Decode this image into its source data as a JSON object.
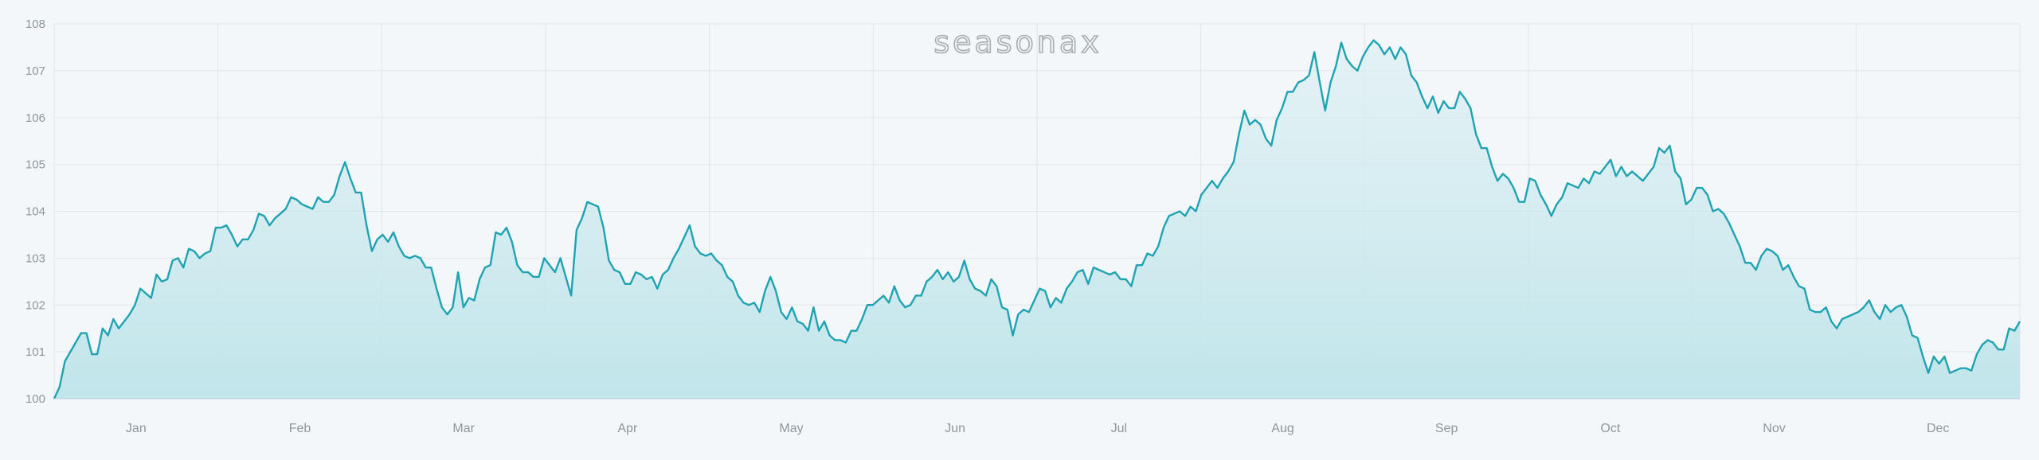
{
  "brand": {
    "watermark": "seasonax"
  },
  "colors": {
    "line": "#1fa3b3",
    "fill_top": "#d4ecf0",
    "fill_bottom": "#c0e5ea",
    "grid": "#dfe6ea",
    "axis": "#c4ced4",
    "background": "#f3f7fa"
  },
  "chart_data": {
    "type": "area",
    "y_ticks": [
      "100",
      "101",
      "102",
      "103",
      "104",
      "105",
      "106",
      "107",
      "108"
    ],
    "ylim": [
      100,
      108
    ],
    "x_ticks": [
      "Jan",
      "Feb",
      "Mar",
      "Apr",
      "May",
      "Jun",
      "Jul",
      "Aug",
      "Sep",
      "Oct",
      "Nov",
      "Dec"
    ],
    "grid": true,
    "series": [
      {
        "values": [
          100.0,
          100.25,
          100.8,
          101.0,
          101.2,
          101.4,
          101.4,
          100.95,
          100.95,
          101.5,
          101.35,
          101.7,
          101.5,
          101.65,
          101.8,
          102.0,
          102.35,
          102.25,
          102.15,
          102.65,
          102.5,
          102.55,
          102.95,
          103.0,
          102.8,
          103.2,
          103.15,
          103.0,
          103.1,
          103.15,
          103.65,
          103.65,
          103.7,
          103.5,
          103.25,
          103.4,
          103.4,
          103.6,
          103.95,
          103.9,
          103.7,
          103.85,
          103.95,
          104.05,
          104.3,
          104.25,
          104.15,
          104.1,
          104.05,
          104.3,
          104.2,
          104.2,
          104.35,
          104.75,
          105.05,
          104.7,
          104.4,
          104.4,
          103.7,
          103.15,
          103.4,
          103.5,
          103.35,
          103.55,
          103.25,
          103.05,
          103.0,
          103.05,
          103.0,
          102.8,
          102.8,
          102.35,
          101.95,
          101.8,
          101.95,
          102.7,
          101.95,
          102.15,
          102.1,
          102.55,
          102.8,
          102.85,
          103.55,
          103.5,
          103.65,
          103.35,
          102.85,
          102.7,
          102.7,
          102.6,
          102.6,
          103.0,
          102.85,
          102.7,
          103.0,
          102.6,
          102.2,
          103.6,
          103.85,
          104.2,
          104.15,
          104.1,
          103.65,
          102.95,
          102.75,
          102.7,
          102.45,
          102.45,
          102.7,
          102.65,
          102.55,
          102.6,
          102.35,
          102.65,
          102.75,
          103.0,
          103.2,
          103.45,
          103.7,
          103.25,
          103.1,
          103.05,
          103.1,
          102.95,
          102.85,
          102.6,
          102.5,
          102.2,
          102.05,
          102.0,
          102.05,
          101.85,
          102.3,
          102.6,
          102.3,
          101.85,
          101.7,
          101.95,
          101.65,
          101.6,
          101.45,
          101.95,
          101.45,
          101.65,
          101.35,
          101.25,
          101.25,
          101.2,
          101.45,
          101.45,
          101.7,
          102.0,
          102.0,
          102.1,
          102.2,
          102.05,
          102.4,
          102.1,
          101.95,
          102.0,
          102.2,
          102.2,
          102.5,
          102.6,
          102.75,
          102.55,
          102.7,
          102.5,
          102.6,
          102.95,
          102.55,
          102.35,
          102.3,
          102.2,
          102.55,
          102.4,
          101.95,
          101.9,
          101.35,
          101.8,
          101.9,
          101.85,
          102.1,
          102.35,
          102.3,
          101.95,
          102.15,
          102.05,
          102.35,
          102.5,
          102.7,
          102.75,
          102.45,
          102.8,
          102.75,
          102.7,
          102.65,
          102.7,
          102.55,
          102.55,
          102.4,
          102.85,
          102.85,
          103.1,
          103.05,
          103.25,
          103.65,
          103.9,
          103.95,
          104.0,
          103.9,
          104.1,
          104.0,
          104.35,
          104.5,
          104.65,
          104.5,
          104.7,
          104.85,
          105.05,
          105.65,
          106.15,
          105.85,
          105.95,
          105.85,
          105.55,
          105.4,
          105.95,
          106.2,
          106.55,
          106.55,
          106.75,
          106.8,
          106.9,
          107.4,
          106.75,
          106.15,
          106.75,
          107.1,
          107.6,
          107.25,
          107.1,
          107.0,
          107.3,
          107.5,
          107.65,
          107.55,
          107.35,
          107.5,
          107.25,
          107.5,
          107.35,
          106.9,
          106.75,
          106.45,
          106.2,
          106.45,
          106.1,
          106.35,
          106.2,
          106.2,
          106.55,
          106.4,
          106.2,
          105.65,
          105.35,
          105.35,
          104.95,
          104.65,
          104.8,
          104.7,
          104.5,
          104.2,
          104.2,
          104.7,
          104.65,
          104.35,
          104.15,
          103.9,
          104.15,
          104.3,
          104.6,
          104.55,
          104.5,
          104.7,
          104.6,
          104.85,
          104.8,
          104.95,
          105.1,
          104.75,
          104.95,
          104.75,
          104.85,
          104.75,
          104.65,
          104.8,
          104.95,
          105.35,
          105.25,
          105.4,
          104.85,
          104.7,
          104.15,
          104.25,
          104.5,
          104.5,
          104.35,
          104.0,
          104.05,
          103.95,
          103.75,
          103.5,
          103.25,
          102.9,
          102.9,
          102.75,
          103.05,
          103.2,
          103.15,
          103.05,
          102.75,
          102.85,
          102.6,
          102.4,
          102.35,
          101.9,
          101.85,
          101.85,
          101.95,
          101.65,
          101.5,
          101.7,
          101.75,
          101.8,
          101.85,
          101.95,
          102.1,
          101.85,
          101.7,
          102.0,
          101.85,
          101.95,
          102.0,
          101.75,
          101.35,
          101.3,
          100.9,
          100.55,
          100.9,
          100.75,
          100.9,
          100.55,
          100.6,
          100.65,
          100.65,
          100.6,
          100.95,
          101.15,
          101.25,
          101.2,
          101.05,
          101.05,
          101.5,
          101.45,
          101.65
        ]
      }
    ]
  }
}
